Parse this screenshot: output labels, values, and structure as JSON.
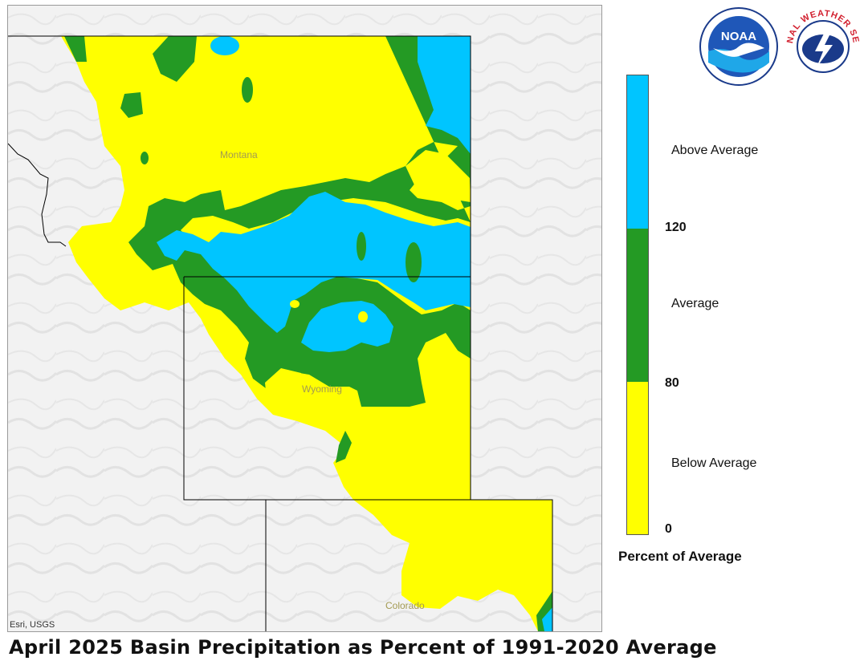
{
  "title": "April 2025 Basin Precipitation as Percent of 1991-2020 Average",
  "attribution": "Esri, USGS",
  "map": {
    "state_labels": [
      "Montana",
      "Wyoming",
      "Colorado"
    ]
  },
  "legend": {
    "title": "Percent of Average",
    "categories": [
      {
        "label": "Above Average",
        "color": "#00c5ff"
      },
      {
        "label": "Average",
        "color": "#249a24"
      },
      {
        "label": "Below Average",
        "color": "#ffff00"
      }
    ],
    "ticks": [
      "120",
      "80",
      "0"
    ]
  },
  "logos": {
    "noaa": {
      "text": "NOAA",
      "icon": "noaa-logo-icon"
    },
    "nws": {
      "text": "NATIONAL WEATHER SERVICE",
      "icon": "nws-logo-icon"
    }
  },
  "colors": {
    "above": "#00c5ff",
    "average": "#249a24",
    "below": "#ffff00",
    "border": "#000000"
  }
}
